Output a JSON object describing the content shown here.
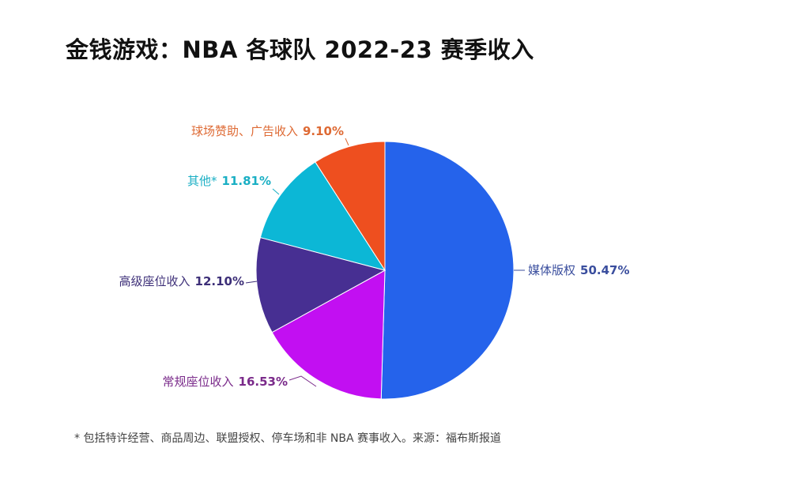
{
  "chart_data": {
    "type": "pie",
    "title": "金钱游戏：NBA 各球队 2022-23 赛季收入",
    "start": "top",
    "direction": "clockwise",
    "slices": [
      {
        "label": "媒体版权",
        "value": 50.47,
        "value_label": "50.47%",
        "color": "#2563EB",
        "label_color": "#3A4E9E"
      },
      {
        "label": "常规座位收入",
        "value": 16.53,
        "value_label": "16.53%",
        "color": "#C20FF2",
        "label_color": "#7A2A8A"
      },
      {
        "label": "高级座位收入",
        "value": 12.1,
        "value_label": "12.10%",
        "color": "#472F92",
        "label_color": "#3D2F78"
      },
      {
        "label": "其他*",
        "value": 11.81,
        "value_label": "11.81%",
        "color": "#0CB7D6",
        "label_color": "#1AAFC4"
      },
      {
        "label": "球场赞助、广告收入",
        "value": 9.1,
        "value_label": "9.10%",
        "color": "#EE4F1F",
        "label_color": "#DE6A34"
      }
    ],
    "footnote": "* 包括特许经营、商品周边、联盟授权、停车场和非 NBA 赛事收入。来源：福布斯报道"
  }
}
